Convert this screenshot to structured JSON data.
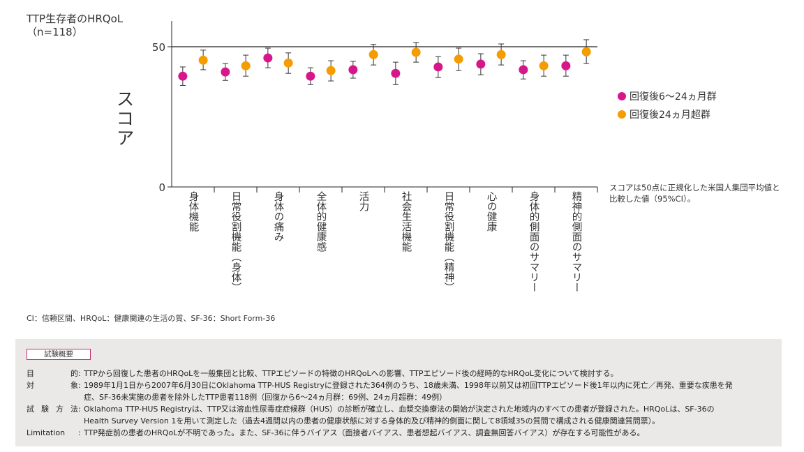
{
  "title_line1": "TTP生存者のHRQoL",
  "title_line2": "（n=118）",
  "legend": [
    {
      "label": "回復後6〜24ヵ月群",
      "color": "#d8168b"
    },
    {
      "label": "回復後24ヵ月超群",
      "color": "#f59c00"
    }
  ],
  "note_line1": "スコアは50点に正規化した米国人集団平均値と",
  "note_line2": "比較した値（95%CI）。",
  "abbreviations": "CI：信頼区間、HRQoL：健康関連の生活の質、SF-36：Short  Form-36",
  "summary": {
    "tag": "試験概要",
    "rows": [
      {
        "label": [
          "目",
          "的"
        ],
        "lines": [
          "TTPから回復した患者のHRQoLを一般集団と比較、TTPエピソードの特徴のHRQoLへの影響、TTPエピソード後の経時的なHRQoL変化について検討する。"
        ]
      },
      {
        "label": [
          "対",
          "象"
        ],
        "lines": [
          "1989年1月1日から2007年6月30日にOklahoma TTP-HUS Registryに登録された364例のうち、18歳未満、1998年以前又は初回TTPエピソード後1年以内に死亡／再発、重要な疾患を発",
          "症、SF-36未実施の患者を除外したTTP患者118例（回復から6〜24ヵ月群：69例、24ヵ月超群：49例）"
        ]
      },
      {
        "label": [
          "試",
          "験",
          "方",
          "法"
        ],
        "lines": [
          "Oklahoma TTP-HUS Registryは、TTP又は溶血性尿毒症症候群（HUS）の診断が確立し、血漿交換療法の開始が決定された地域内のすべての患者が登録された。HRQoLは、SF-36の",
          "Health Survey Version 1を用いて測定した（過去4週間以内の患者の健康状態に対する身体的及び精神的側面に関して8領域35の質問で構成される健康関連質問票）。"
        ]
      },
      {
        "label": [
          "Limitation"
        ],
        "lines": [
          "TTP発症前の患者のHRQoLが不明であった。また、SF-36に伴うバイアス（面接者バイアス、患者想起バイアス、調査無回答バイアス）が存在する可能性がある。"
        ]
      }
    ]
  },
  "chart_data": {
    "type": "scatter",
    "title": "TTP生存者のHRQoL（n=118）",
    "ylabel": "スコア",
    "ylim": [
      0,
      58
    ],
    "yticks": [
      0,
      50
    ],
    "reference_line": 50,
    "categories": [
      "身体機能",
      "日常役割機能（身体）",
      "身体の痛み",
      "全体的健康感",
      "活力",
      "社会生活機能",
      "日常役割機能（精神）",
      "心の健康",
      "身体的側面のサマリー",
      "精神的側面のサマリー"
    ],
    "series": [
      {
        "name": "回復後6〜24ヵ月群",
        "color": "#d8168b",
        "values": [
          39.5,
          41.0,
          46.0,
          39.5,
          41.8,
          40.5,
          42.8,
          43.8,
          41.8,
          43.2
        ],
        "ci_low": [
          36.2,
          38.0,
          42.5,
          36.5,
          38.8,
          36.5,
          39.0,
          40.0,
          38.5,
          39.5
        ],
        "ci_high": [
          42.8,
          44.0,
          49.5,
          42.5,
          44.8,
          44.5,
          46.5,
          47.5,
          45.0,
          47.0
        ]
      },
      {
        "name": "回復後24ヵ月超群",
        "color": "#f59c00",
        "values": [
          45.2,
          43.2,
          44.2,
          41.5,
          47.2,
          48.0,
          45.6,
          47.2,
          43.2,
          48.2
        ],
        "ci_low": [
          41.8,
          39.5,
          40.5,
          37.8,
          43.5,
          44.5,
          41.5,
          43.5,
          39.5,
          44.0
        ],
        "ci_high": [
          48.8,
          47.0,
          47.8,
          45.0,
          50.8,
          51.5,
          49.5,
          51.0,
          47.0,
          52.5
        ]
      }
    ]
  }
}
